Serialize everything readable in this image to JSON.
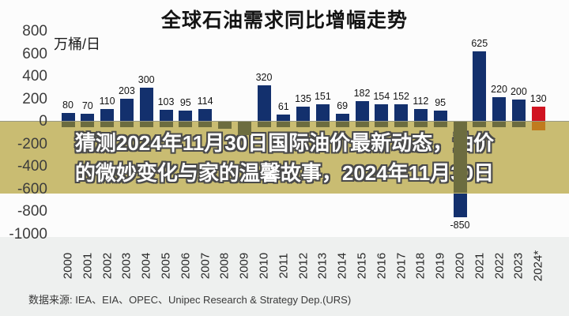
{
  "title": "全球石油需求同比增幅走势",
  "unit_label": "万桶/日",
  "overlay": {
    "line1": "猜测2024年11月30日国际油价最新动态，油价",
    "line2": "的微妙变化与家的温馨故事，2024年11月30日"
  },
  "source": "数据来源: IEA、EIA、OPEC、Unipec Research & Strategy Dep.(URS)",
  "colors": {
    "bar_navy": "#13306d",
    "bar_red": "#d01321",
    "bar_navy_behind_band": "#6c6c3f",
    "bar_red_behind_band": "#c07b1e",
    "overlay_band": "#c9bc72",
    "overlay_text": "#ffffff",
    "overlay_text_outline": "#4a4a4a"
  },
  "chart_data": {
    "type": "bar",
    "title": "全球石油需求同比增幅走势",
    "ylabel": "万桶/日",
    "categories": [
      "2000",
      "2001",
      "2002",
      "2003",
      "2004",
      "2005",
      "2006",
      "2007",
      "2008",
      "2009",
      "2010",
      "2011",
      "2012",
      "2013",
      "2014",
      "2015",
      "2016",
      "2017",
      "2018",
      "2019",
      "2020",
      "2021",
      "2022",
      "2023",
      "2024*"
    ],
    "values": [
      80,
      70,
      110,
      203,
      300,
      103,
      95,
      114,
      -60,
      -120,
      320,
      61,
      135,
      151,
      69,
      182,
      154,
      152,
      112,
      95,
      -850,
      625,
      220,
      200,
      130
    ],
    "labels": [
      "80",
      "70",
      "110",
      "203",
      "300",
      "103",
      "95",
      "114",
      "",
      "",
      "320",
      "61",
      "135",
      "151",
      "69",
      "182",
      "154",
      "152",
      "112",
      "95",
      "-850",
      "625",
      "220",
      "200",
      "130"
    ],
    "highlight_index": 24,
    "yticks": [
      800,
      600,
      400,
      200,
      0,
      -200,
      -400,
      -600,
      -800,
      -1000
    ],
    "ylim": [
      -1000,
      800
    ],
    "grid": false,
    "legend": null
  }
}
